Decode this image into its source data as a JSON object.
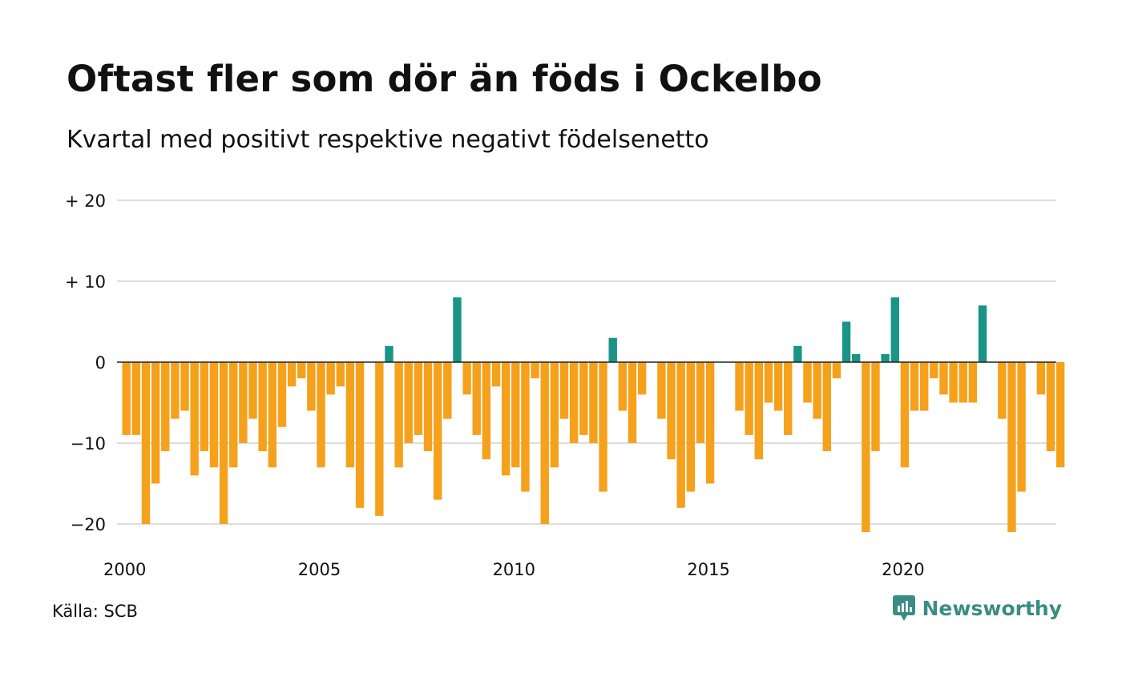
{
  "title": "Oftast fler som dör än föds i Ockelbo",
  "subtitle": "Kvartal med positivt respektive negativt födelsenetto",
  "source": "Källa: SCB",
  "brand": {
    "name": "Newsworthy",
    "icon": "newsworthy-logo-icon"
  },
  "colors": {
    "positive": "#1a9486",
    "negative": "#f5a11c",
    "grid": "#dddddd",
    "zero_line": "#222222"
  },
  "chart_data": {
    "type": "bar",
    "title": "Oftast fler som dör än föds i Ockelbo",
    "subtitle": "Kvartal med positivt respektive negativt födelsenetto",
    "xlabel": "",
    "ylabel": "",
    "ylim": [
      -22,
      20
    ],
    "grid": true,
    "yticks": [
      {
        "value": 20,
        "label": "+ 20"
      },
      {
        "value": 10,
        "label": "+ 10"
      },
      {
        "value": 0,
        "label": "0"
      },
      {
        "value": -10,
        "label": "−10"
      },
      {
        "value": -20,
        "label": "−20"
      }
    ],
    "xticks": [
      "2000",
      "2005",
      "2010",
      "2015",
      "2020"
    ],
    "start_year": 2000,
    "quarters_per_year": 4,
    "values": [
      -9,
      -9,
      -20,
      -15,
      -11,
      -7,
      -6,
      -14,
      -11,
      -13,
      -20,
      -13,
      -10,
      -7,
      -11,
      -13,
      -8,
      -3,
      -2,
      -6,
      -13,
      -4,
      -3,
      -13,
      -18,
      0,
      -19,
      2,
      -13,
      -10,
      -9,
      -11,
      -17,
      -7,
      8,
      -4,
      -9,
      -12,
      -3,
      -14,
      -13,
      -16,
      -2,
      -20,
      -13,
      -7,
      -10,
      -9,
      -10,
      -16,
      3,
      -6,
      -10,
      -4,
      0,
      -7,
      -12,
      -18,
      -16,
      -10,
      -15,
      0,
      0,
      -6,
      -9,
      -12,
      -5,
      -6,
      -9,
      2,
      -5,
      -7,
      -11,
      -2,
      5,
      1,
      -21,
      -11,
      1,
      8,
      -13,
      -6,
      -6,
      -2,
      -4,
      -5,
      -5,
      -5,
      7,
      0,
      -7,
      -21,
      -16,
      0,
      -4,
      -11,
      -13
    ]
  }
}
